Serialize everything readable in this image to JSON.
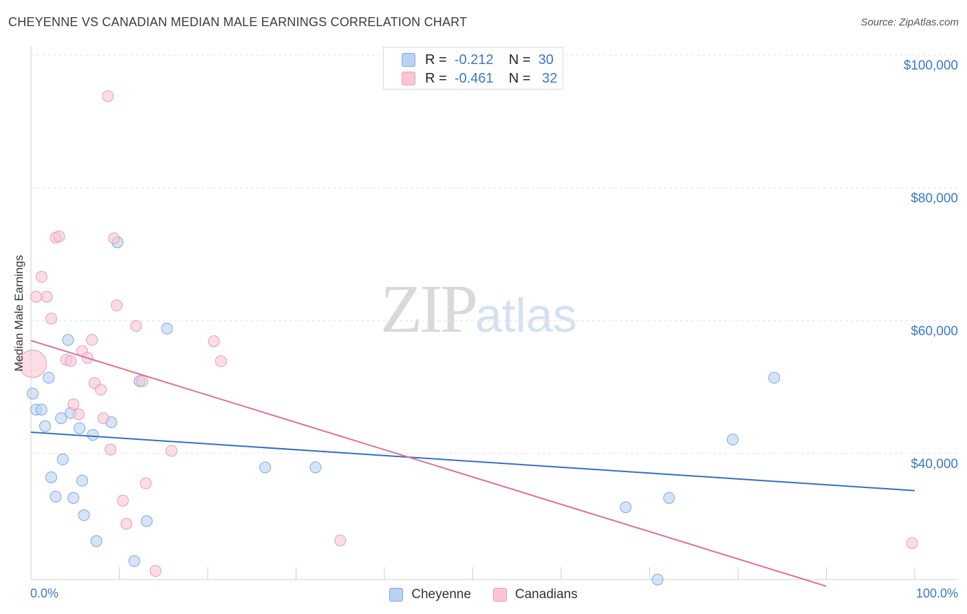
{
  "title": "CHEYENNE VS CANADIAN MEDIAN MALE EARNINGS CORRELATION CHART",
  "source": "Source: ZipAtlas.com",
  "watermark": {
    "part1": "ZIP",
    "part2": "atlas"
  },
  "legend": [
    {
      "r_label": "R =",
      "r_value": "-0.212",
      "n_label": "N =",
      "n_value": "30"
    },
    {
      "r_label": "R =",
      "r_value": "-0.461",
      "n_label": "N =",
      "n_value": "32"
    }
  ],
  "colors": {
    "cheyenne_fill": "#b9d2f2",
    "cheyenne_stroke": "#7ea8dc",
    "cheyenne_line": "#2f6fca",
    "canadians_fill": "#f8c6d4",
    "canadians_stroke": "#ec9ab2",
    "canadians_line": "#e06e96",
    "axis_text": "#3b78c9"
  },
  "chart_data": {
    "type": "scatter",
    "title": "CHEYENNE VS CANADIAN MEDIAN MALE EARNINGS CORRELATION CHART",
    "xlabel": "",
    "ylabel": "Median Male Earnings",
    "x_tick_labels": [
      "0.0%",
      "100.0%"
    ],
    "y_ticks": [
      40000,
      60000,
      80000,
      100000
    ],
    "y_tick_labels": [
      "$40,000",
      "$60,000",
      "$80,000",
      "$100,000"
    ],
    "xlim": [
      0,
      100
    ],
    "ylim": [
      21000,
      100000
    ],
    "series": [
      {
        "name": "Cheyenne",
        "points": [
          [
            0.2,
            49000
          ],
          [
            0.6,
            46600
          ],
          [
            1.2,
            46600
          ],
          [
            1.6,
            44100
          ],
          [
            2.0,
            51400
          ],
          [
            2.3,
            36400
          ],
          [
            2.8,
            33500
          ],
          [
            3.4,
            45300
          ],
          [
            3.6,
            39100
          ],
          [
            4.2,
            57100
          ],
          [
            4.5,
            46100
          ],
          [
            4.8,
            33300
          ],
          [
            5.5,
            43800
          ],
          [
            5.8,
            35900
          ],
          [
            6.0,
            30700
          ],
          [
            7.0,
            42800
          ],
          [
            7.4,
            26800
          ],
          [
            9.1,
            44700
          ],
          [
            9.8,
            71800
          ],
          [
            11.7,
            23800
          ],
          [
            12.3,
            50900
          ],
          [
            13.1,
            29800
          ],
          [
            15.4,
            58800
          ],
          [
            26.5,
            37900
          ],
          [
            32.2,
            37900
          ],
          [
            67.3,
            31900
          ],
          [
            72.2,
            33300
          ],
          [
            79.4,
            42100
          ],
          [
            84.1,
            51400
          ],
          [
            70.9,
            21000
          ]
        ],
        "trend": {
          "x": [
            0,
            100
          ],
          "y": [
            43200,
            34400
          ]
        }
      },
      {
        "name": "Canadians",
        "points": [
          [
            0.2,
            53500
          ],
          [
            0.6,
            63600
          ],
          [
            1.2,
            66600
          ],
          [
            1.8,
            63600
          ],
          [
            2.3,
            60300
          ],
          [
            2.8,
            72500
          ],
          [
            3.2,
            72700
          ],
          [
            4.0,
            54100
          ],
          [
            4.5,
            53900
          ],
          [
            4.8,
            47400
          ],
          [
            5.4,
            45900
          ],
          [
            5.8,
            55400
          ],
          [
            6.4,
            54400
          ],
          [
            6.9,
            57100
          ],
          [
            7.2,
            50600
          ],
          [
            7.9,
            49600
          ],
          [
            8.2,
            45300
          ],
          [
            8.7,
            93800
          ],
          [
            9.0,
            40600
          ],
          [
            9.4,
            72400
          ],
          [
            9.7,
            62300
          ],
          [
            10.4,
            32900
          ],
          [
            10.8,
            29400
          ],
          [
            11.9,
            59200
          ],
          [
            12.6,
            50900
          ],
          [
            13.0,
            35500
          ],
          [
            14.1,
            22300
          ],
          [
            15.9,
            40400
          ],
          [
            20.7,
            56900
          ],
          [
            21.5,
            53900
          ],
          [
            35.0,
            26900
          ],
          [
            99.7,
            26500
          ]
        ],
        "trend": {
          "x": [
            0,
            90
          ],
          "y": [
            57000,
            20000
          ]
        }
      }
    ]
  }
}
